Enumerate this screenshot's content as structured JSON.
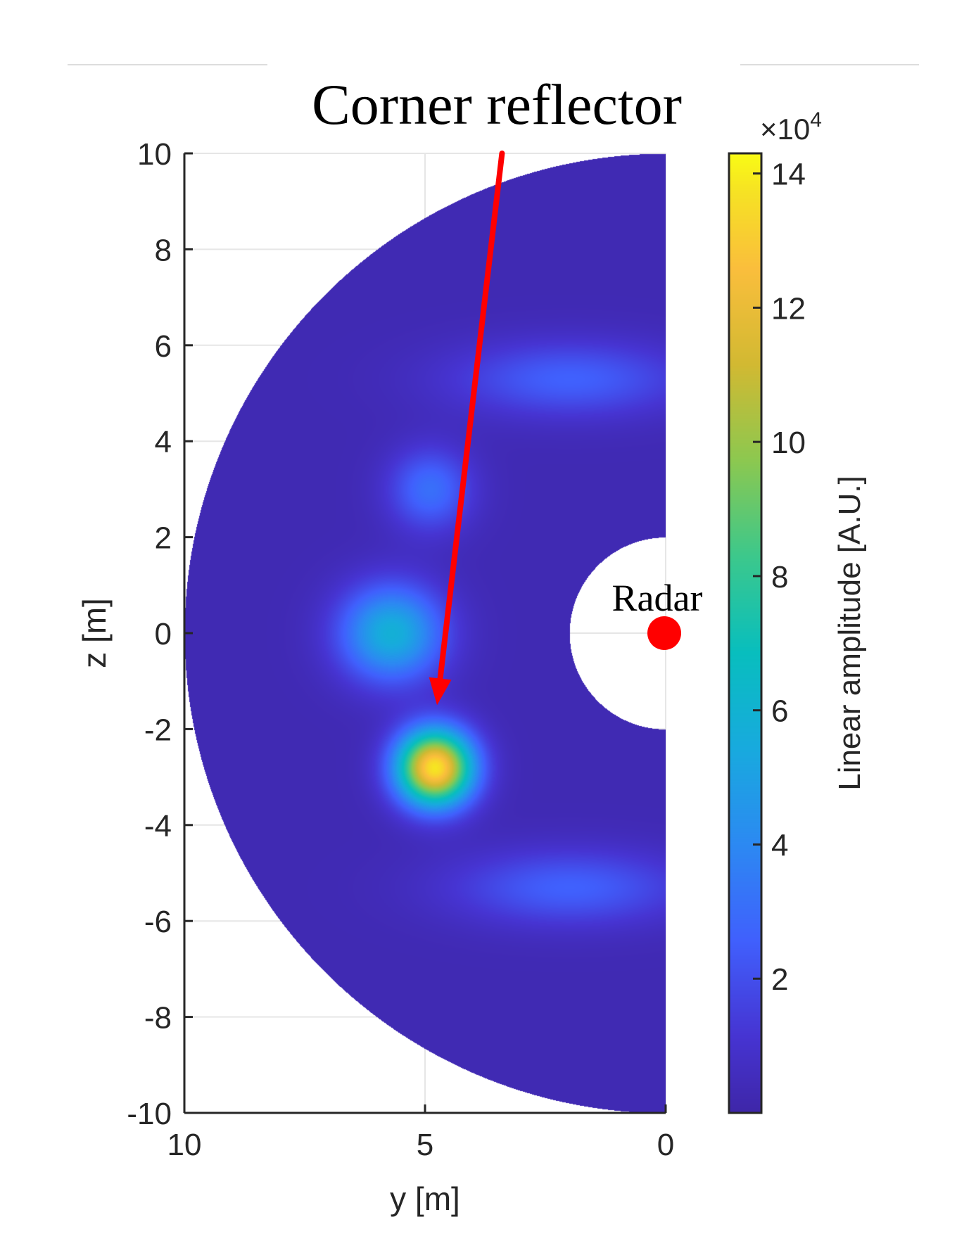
{
  "chart_data": {
    "type": "heatmap",
    "xlabel": "y [m]",
    "ylabel": "z [m]",
    "xlim": [
      10,
      0
    ],
    "ylim": [
      -10,
      10
    ],
    "x_reversed": true,
    "x_ticks": [
      "10",
      "5",
      "0"
    ],
    "x_tick_values": [
      10,
      5,
      0
    ],
    "y_ticks": [
      "10",
      "8",
      "6",
      "4",
      "2",
      "0",
      "-2",
      "-4",
      "-6",
      "-8",
      "-10"
    ],
    "y_tick_values": [
      10,
      8,
      6,
      4,
      2,
      0,
      -2,
      -4,
      -6,
      -8,
      -10
    ],
    "grid": true,
    "domain": {
      "shape": "half-annulus",
      "inner_radius": 2,
      "outer_radius": 10
    },
    "background_level": 0.3,
    "blobs": [
      {
        "y": 4.8,
        "z": -2.8,
        "peak": 13.5,
        "sy": 0.55,
        "sz": 0.55
      },
      {
        "y": 5.7,
        "z": 0,
        "peak": 5.5,
        "sy": 0.75,
        "sz": 0.7
      },
      {
        "y": 4.9,
        "z": 3.0,
        "peak": 2.8,
        "sy": 0.6,
        "sz": 0.6
      },
      {
        "y": 2.0,
        "z": 5.3,
        "peak": 2.3,
        "sy": 1.7,
        "sz": 0.55
      },
      {
        "y": 2.0,
        "z": -5.3,
        "peak": 2.3,
        "sy": 1.7,
        "sz": 0.55
      }
    ],
    "colorbar": {
      "label": "Linear amplitude [A.U.]",
      "exponent_label": "×10",
      "exponent_power": "4",
      "min": 0,
      "max": 14.3,
      "ticks": [
        "2",
        "4",
        "6",
        "8",
        "10",
        "12",
        "14"
      ],
      "tick_values": [
        2,
        4,
        6,
        8,
        10,
        12,
        14
      ]
    },
    "annotations": {
      "target_label": "Corner reflector",
      "target_color": "#ff0000",
      "arrow_start": {
        "y": 3.4,
        "z": 10
      },
      "arrow_end": {
        "y": 4.75,
        "z": -1.5
      },
      "radar_label": "Radar",
      "radar_position": {
        "y": 0,
        "z": 0
      },
      "radar_color": "#ff0000"
    }
  }
}
